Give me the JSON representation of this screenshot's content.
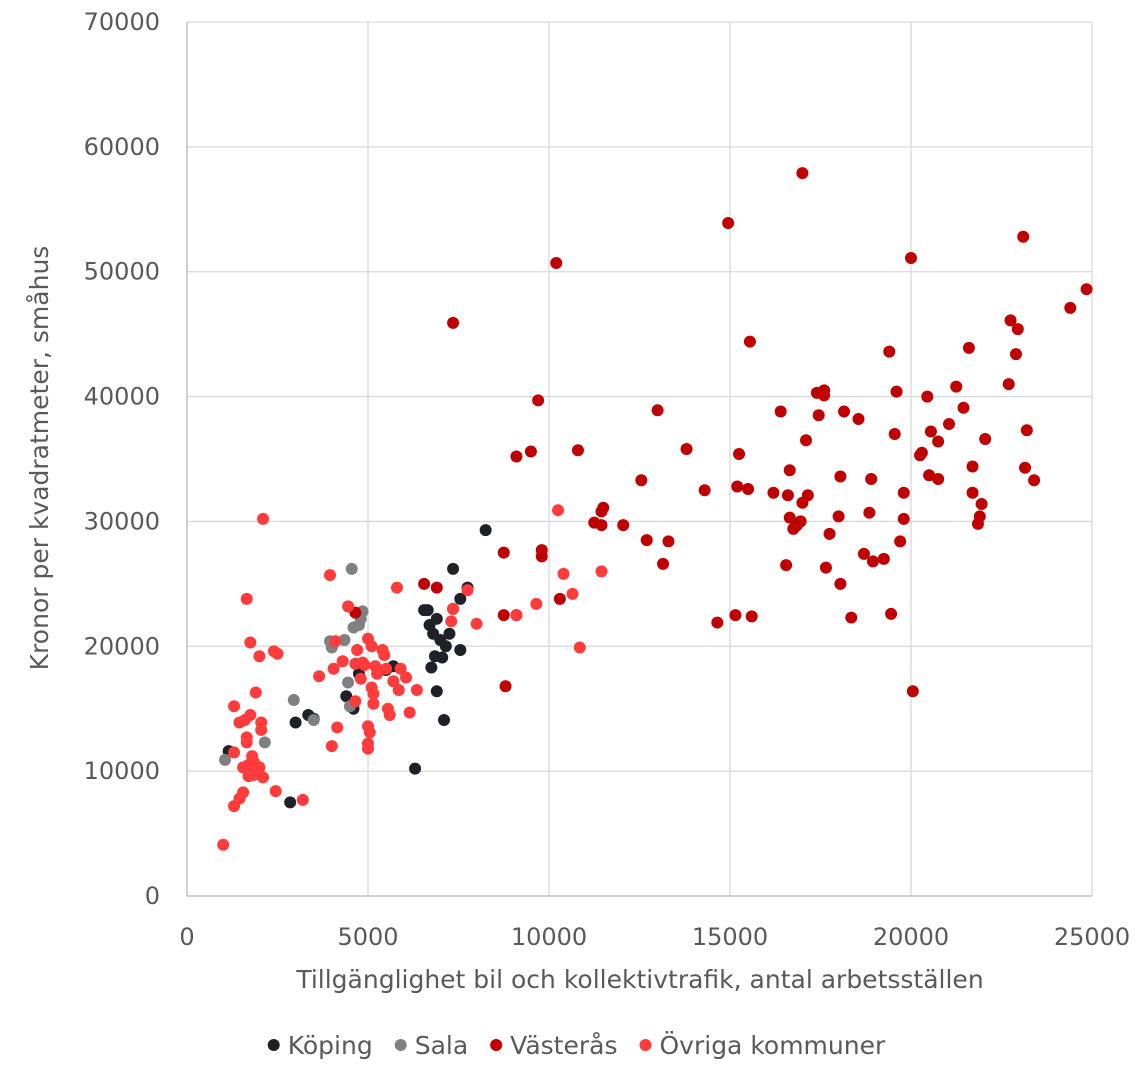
{
  "chart_data": {
    "type": "scatter",
    "title": "",
    "xlabel": "Tillgänglighet bil och kollektivtrafik, antal arbetsställen",
    "ylabel": "Kronor per kvadratmeter, småhus",
    "xlim": [
      0,
      25000
    ],
    "ylim": [
      0,
      70000
    ],
    "x_ticks": [
      "0",
      "5000",
      "10000",
      "15000",
      "20000",
      "25000"
    ],
    "y_ticks": [
      "0",
      "10000",
      "20000",
      "30000",
      "40000",
      "50000",
      "60000",
      "70000"
    ],
    "grid": "on",
    "legend_position": "bottom",
    "series": [
      {
        "name": "Köping",
        "color": "#1e2228",
        "points": [
          [
            1150,
            11600
          ],
          [
            2850,
            7500
          ],
          [
            3000,
            13900
          ],
          [
            3350,
            14500
          ],
          [
            3500,
            14200
          ],
          [
            4400,
            16000
          ],
          [
            4600,
            15000
          ],
          [
            4750,
            17800
          ],
          [
            5500,
            18100
          ],
          [
            5700,
            18400
          ],
          [
            6300,
            10200
          ],
          [
            6550,
            22900
          ],
          [
            6650,
            22900
          ],
          [
            6700,
            21700
          ],
          [
            6750,
            18300
          ],
          [
            6800,
            21000
          ],
          [
            6850,
            19200
          ],
          [
            6900,
            22200
          ],
          [
            6900,
            16400
          ],
          [
            7000,
            20500
          ],
          [
            7050,
            19100
          ],
          [
            7100,
            14100
          ],
          [
            7150,
            20000
          ],
          [
            7250,
            21000
          ],
          [
            7350,
            23000
          ],
          [
            7350,
            26200
          ],
          [
            7550,
            23800
          ],
          [
            7550,
            19700
          ],
          [
            7750,
            24700
          ],
          [
            8250,
            29300
          ]
        ]
      },
      {
        "name": "Sala",
        "color": "#808080",
        "points": [
          [
            1050,
            10900
          ],
          [
            2150,
            12300
          ],
          [
            2950,
            15700
          ],
          [
            3500,
            14100
          ],
          [
            3950,
            20400
          ],
          [
            4000,
            19900
          ],
          [
            4350,
            20500
          ],
          [
            4450,
            17100
          ],
          [
            4550,
            26200
          ],
          [
            4600,
            21500
          ],
          [
            4750,
            21700
          ],
          [
            4800,
            22200
          ],
          [
            4850,
            22800
          ],
          [
            4500,
            15200
          ]
        ]
      },
      {
        "name": "Västerås",
        "color": "#c00000",
        "points": [
          [
            4650,
            22700
          ],
          [
            6550,
            25000
          ],
          [
            6900,
            24700
          ],
          [
            7350,
            45900
          ],
          [
            8750,
            27500
          ],
          [
            8750,
            22500
          ],
          [
            8800,
            16800
          ],
          [
            9100,
            35200
          ],
          [
            9100,
            22500
          ],
          [
            9500,
            35600
          ],
          [
            9700,
            39700
          ],
          [
            9800,
            27200
          ],
          [
            9800,
            27700
          ],
          [
            10200,
            50700
          ],
          [
            10300,
            23800
          ],
          [
            10800,
            35700
          ],
          [
            11250,
            29900
          ],
          [
            11450,
            29700
          ],
          [
            11450,
            30800
          ],
          [
            11500,
            31100
          ],
          [
            12050,
            29700
          ],
          [
            12550,
            33300
          ],
          [
            12700,
            28500
          ],
          [
            13000,
            38900
          ],
          [
            13150,
            26600
          ],
          [
            13300,
            28400
          ],
          [
            13800,
            35800
          ],
          [
            14300,
            32500
          ],
          [
            14650,
            21900
          ],
          [
            14950,
            53900
          ],
          [
            15150,
            22500
          ],
          [
            15200,
            32800
          ],
          [
            15250,
            35400
          ],
          [
            15500,
            32600
          ],
          [
            15550,
            44400
          ],
          [
            15600,
            22400
          ],
          [
            16200,
            32300
          ],
          [
            16400,
            38800
          ],
          [
            16550,
            26500
          ],
          [
            16600,
            32100
          ],
          [
            16650,
            34100
          ],
          [
            16650,
            30300
          ],
          [
            16750,
            29400
          ],
          [
            16850,
            29700
          ],
          [
            16950,
            30000
          ],
          [
            17000,
            57900
          ],
          [
            17000,
            31500
          ],
          [
            17100,
            36500
          ],
          [
            17150,
            32100
          ],
          [
            17400,
            40300
          ],
          [
            17450,
            38500
          ],
          [
            17600,
            40500
          ],
          [
            17600,
            40100
          ],
          [
            17650,
            26300
          ],
          [
            17750,
            29000
          ],
          [
            18000,
            30400
          ],
          [
            18050,
            33600
          ],
          [
            18050,
            25000
          ],
          [
            18150,
            38800
          ],
          [
            18350,
            22300
          ],
          [
            18550,
            38200
          ],
          [
            18700,
            27400
          ],
          [
            18850,
            30700
          ],
          [
            18900,
            33400
          ],
          [
            18950,
            26800
          ],
          [
            19250,
            27000
          ],
          [
            19400,
            43600
          ],
          [
            19450,
            22600
          ],
          [
            19550,
            37000
          ],
          [
            19600,
            40400
          ],
          [
            19700,
            28400
          ],
          [
            19800,
            32300
          ],
          [
            19800,
            30200
          ],
          [
            20000,
            51100
          ],
          [
            20050,
            16400
          ],
          [
            20250,
            35300
          ],
          [
            20300,
            35500
          ],
          [
            20450,
            40000
          ],
          [
            20500,
            33700
          ],
          [
            20550,
            37200
          ],
          [
            20750,
            36400
          ],
          [
            20750,
            33400
          ],
          [
            21050,
            37800
          ],
          [
            21250,
            40800
          ],
          [
            21450,
            39100
          ],
          [
            21600,
            43900
          ],
          [
            21700,
            34400
          ],
          [
            21700,
            32300
          ],
          [
            21850,
            29800
          ],
          [
            21900,
            30400
          ],
          [
            21950,
            31400
          ],
          [
            22050,
            36600
          ],
          [
            22700,
            41000
          ],
          [
            22750,
            46100
          ],
          [
            22900,
            43400
          ],
          [
            22950,
            45400
          ],
          [
            23100,
            52800
          ],
          [
            23150,
            34300
          ],
          [
            23200,
            37300
          ],
          [
            23400,
            33300
          ],
          [
            24400,
            47100
          ],
          [
            24850,
            48600
          ]
        ]
      },
      {
        "name": "Övriga kommuner",
        "color": "#ff3b3b",
        "points": [
          [
            1000,
            4100
          ],
          [
            1300,
            15200
          ],
          [
            1300,
            11500
          ],
          [
            1300,
            7200
          ],
          [
            1450,
            13900
          ],
          [
            1450,
            7800
          ],
          [
            1550,
            8300
          ],
          [
            1550,
            10300
          ],
          [
            1600,
            14100
          ],
          [
            1650,
            23800
          ],
          [
            1650,
            12700
          ],
          [
            1650,
            12300
          ],
          [
            1700,
            9600
          ],
          [
            1700,
            10500
          ],
          [
            1750,
            20300
          ],
          [
            1750,
            14500
          ],
          [
            1800,
            11200
          ],
          [
            1850,
            10700
          ],
          [
            1850,
            9700
          ],
          [
            1900,
            16300
          ],
          [
            1900,
            10000
          ],
          [
            2000,
            19200
          ],
          [
            2000,
            10300
          ],
          [
            2050,
            13900
          ],
          [
            2050,
            13300
          ],
          [
            2100,
            30200
          ],
          [
            2100,
            9500
          ],
          [
            2400,
            19600
          ],
          [
            2450,
            8400
          ],
          [
            2500,
            19400
          ],
          [
            3200,
            7700
          ],
          [
            3650,
            17600
          ],
          [
            3950,
            25700
          ],
          [
            4000,
            12000
          ],
          [
            4050,
            18200
          ],
          [
            4100,
            20400
          ],
          [
            4150,
            13500
          ],
          [
            4300,
            18800
          ],
          [
            4450,
            23200
          ],
          [
            4650,
            18600
          ],
          [
            4650,
            15600
          ],
          [
            4700,
            19700
          ],
          [
            4800,
            17400
          ],
          [
            4850,
            18700
          ],
          [
            4900,
            18500
          ],
          [
            5000,
            20600
          ],
          [
            5000,
            12200
          ],
          [
            5000,
            11800
          ],
          [
            5000,
            13600
          ],
          [
            5050,
            13100
          ],
          [
            5100,
            16700
          ],
          [
            5100,
            20000
          ],
          [
            5150,
            16200
          ],
          [
            5150,
            15400
          ],
          [
            5200,
            18400
          ],
          [
            5250,
            17800
          ],
          [
            5400,
            19700
          ],
          [
            5450,
            19300
          ],
          [
            5500,
            18200
          ],
          [
            5550,
            15000
          ],
          [
            5600,
            14500
          ],
          [
            5700,
            17200
          ],
          [
            5800,
            24700
          ],
          [
            5850,
            16500
          ],
          [
            5900,
            18200
          ],
          [
            6050,
            17500
          ],
          [
            6150,
            14700
          ],
          [
            6350,
            16500
          ],
          [
            7300,
            22000
          ],
          [
            7350,
            23000
          ],
          [
            7750,
            24500
          ],
          [
            8000,
            21800
          ],
          [
            9100,
            22500
          ],
          [
            9650,
            23400
          ],
          [
            10250,
            30900
          ],
          [
            10400,
            25800
          ],
          [
            10650,
            24200
          ],
          [
            10850,
            19900
          ],
          [
            11450,
            26000
          ]
        ]
      }
    ]
  }
}
